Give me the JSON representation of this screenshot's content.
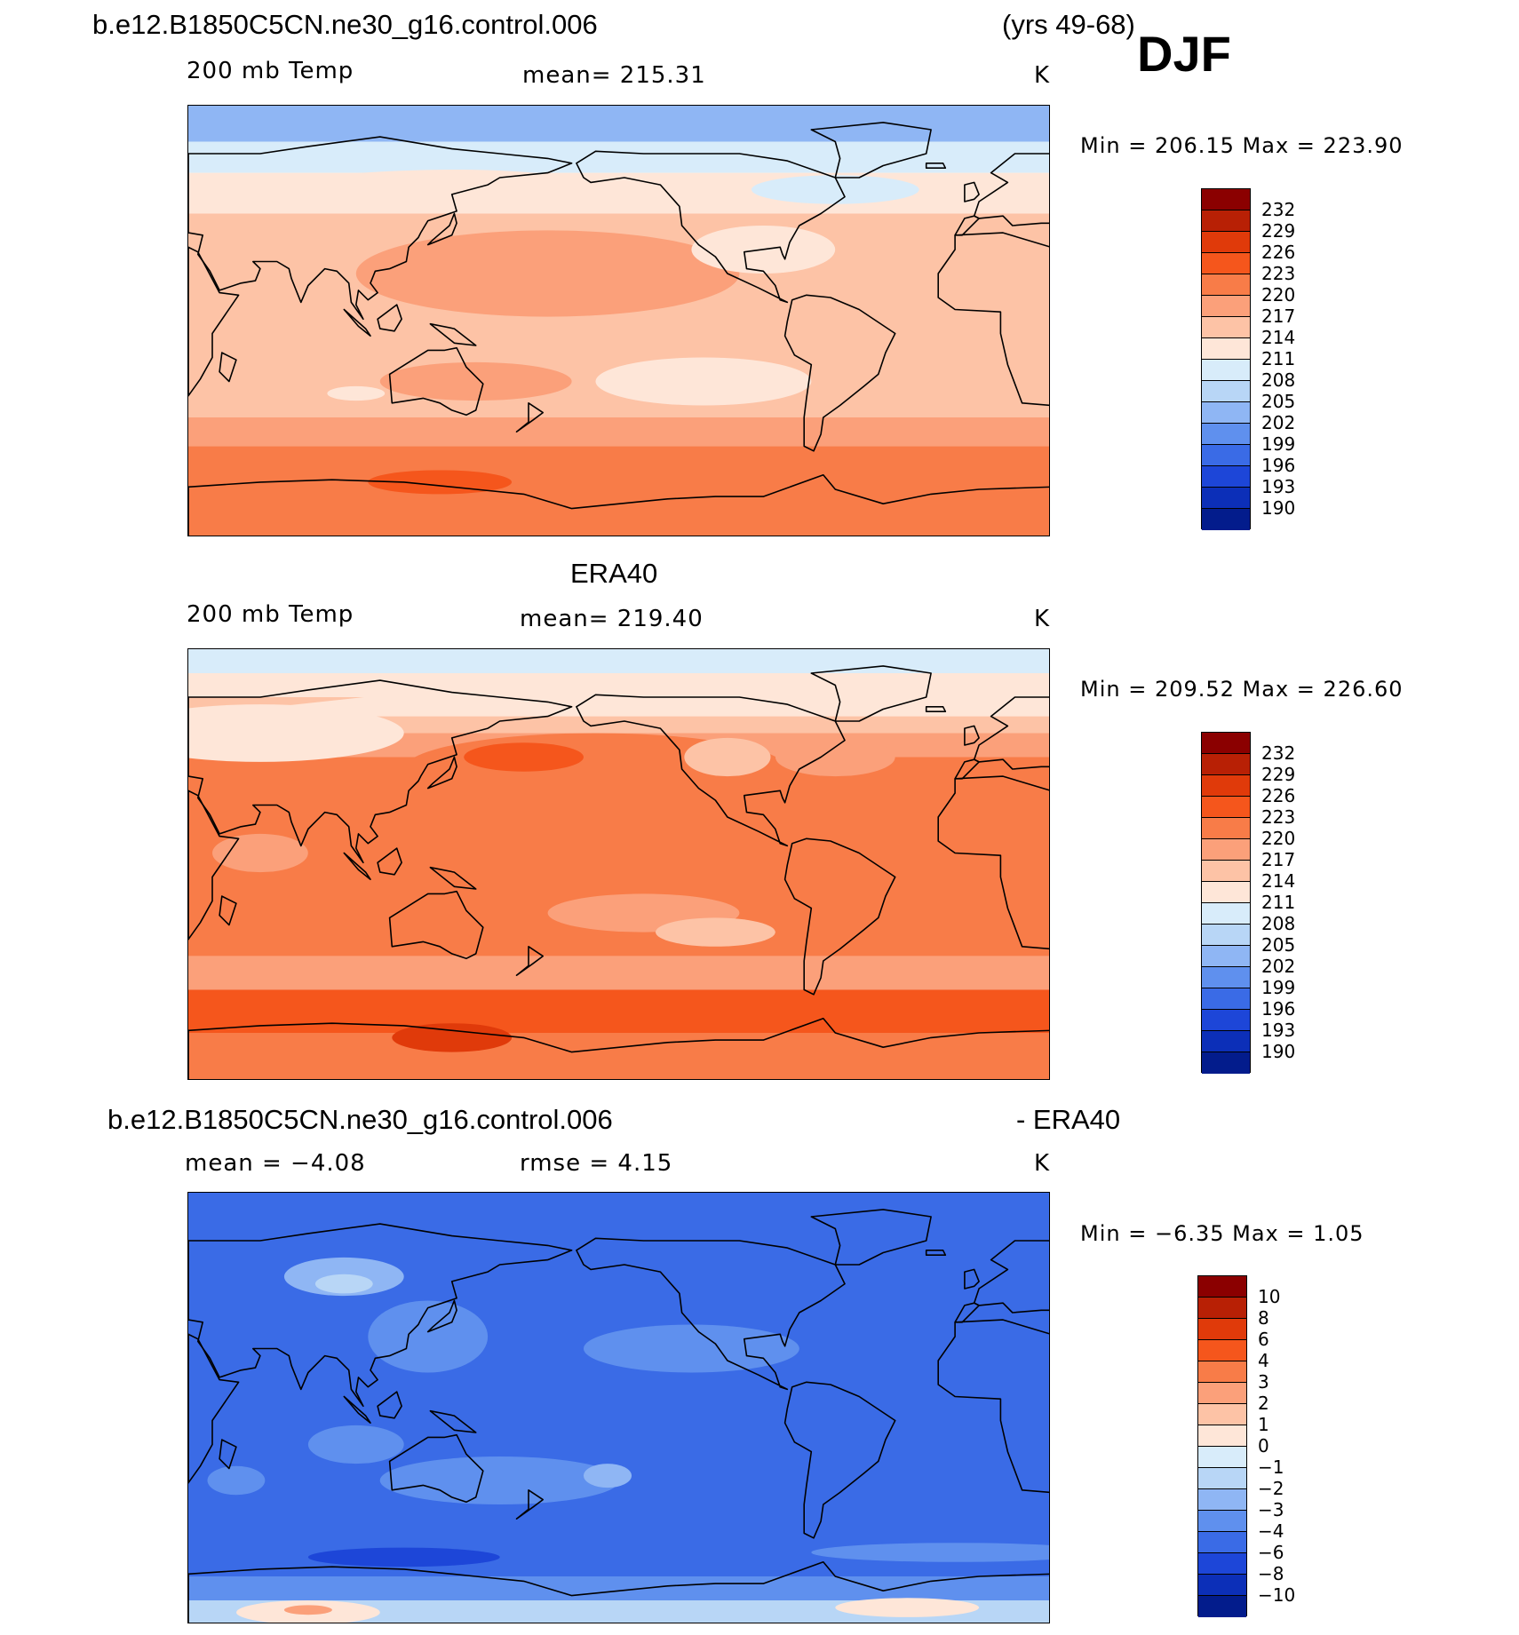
{
  "header": {
    "case_title": "b.e12.B1850C5CN.ne30_g16.control.006",
    "years": "(yrs 49-68)",
    "season": "DJF"
  },
  "panels": [
    {
      "title": "",
      "var_label": "200 mb Temp",
      "stat_text": "mean=  215.31",
      "units": "K",
      "minmax": "Min  =  206.15  Max  =  223.90",
      "colorbar_labels": [
        "232",
        "229",
        "226",
        "223",
        "220",
        "217",
        "214",
        "211",
        "208",
        "205",
        "202",
        "199",
        "196",
        "193",
        "190"
      ],
      "colorbar_colors": [
        "#8b0000",
        "#b82005",
        "#e03a0a",
        "#f5561c",
        "#f87c48",
        "#fba07a",
        "#fdc3a6",
        "#fee6d8",
        "#d8ecfa",
        "#b8d6f6",
        "#8fb6f4",
        "#5f90ee",
        "#3a6be6",
        "#1d46d8",
        "#0c2fb8",
        "#031c8c"
      ],
      "field": "model"
    },
    {
      "title": "ERA40",
      "var_label": "200 mb Temp",
      "stat_text": "mean=  219.40",
      "units": "K",
      "minmax": "Min  =  209.52  Max  =  226.60",
      "colorbar_labels": [
        "232",
        "229",
        "226",
        "223",
        "220",
        "217",
        "214",
        "211",
        "208",
        "205",
        "202",
        "199",
        "196",
        "193",
        "190"
      ],
      "colorbar_colors": [
        "#8b0000",
        "#b82005",
        "#e03a0a",
        "#f5561c",
        "#f87c48",
        "#fba07a",
        "#fdc3a6",
        "#fee6d8",
        "#d8ecfa",
        "#b8d6f6",
        "#8fb6f4",
        "#5f90ee",
        "#3a6be6",
        "#1d46d8",
        "#0c2fb8",
        "#031c8c"
      ],
      "field": "obs"
    },
    {
      "title": "b.e12.B1850C5CN.ne30_g16.control.006",
      "title_right": "- ERA40",
      "var_label": "mean  =   −4.08",
      "stat_text": "rmse  =     4.15",
      "units": "K",
      "minmax": "Min  =   −6.35  Max  =      1.05",
      "colorbar_labels": [
        "10",
        "8",
        "6",
        "4",
        "3",
        "2",
        "1",
        "0",
        "−1",
        "−2",
        "−3",
        "−4",
        "−6",
        "−8",
        "−10"
      ],
      "colorbar_colors": [
        "#8b0000",
        "#b82005",
        "#e03a0a",
        "#f5561c",
        "#f87c48",
        "#fba07a",
        "#fdc3a6",
        "#fee6d8",
        "#d8ecfa",
        "#b8d6f6",
        "#8fb6f4",
        "#5f90ee",
        "#3a6be6",
        "#1d46d8",
        "#0c2fb8",
        "#031c8c"
      ],
      "field": "diff"
    }
  ]
}
